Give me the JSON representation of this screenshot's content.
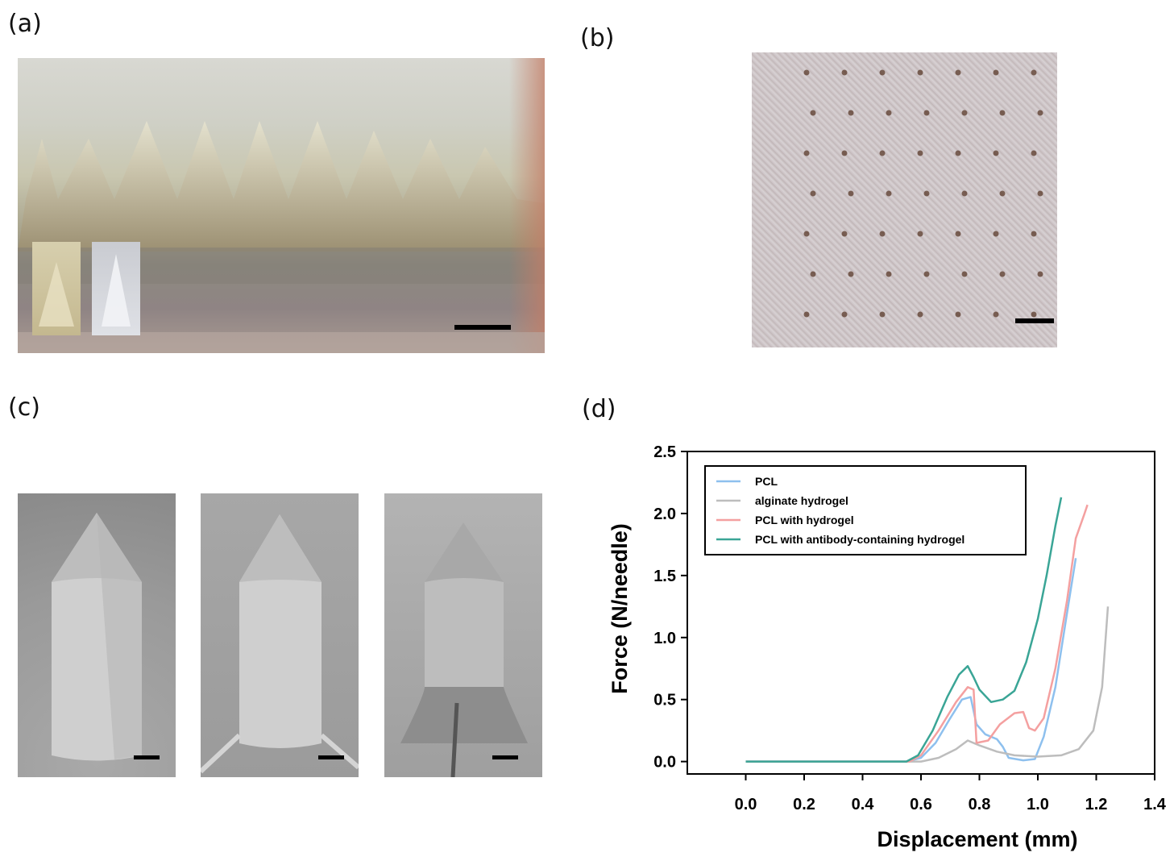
{
  "panels": {
    "a": {
      "label": "(a)"
    },
    "b": {
      "label": "(b)"
    },
    "c": {
      "label": "(c)"
    },
    "d": {
      "label": "(d)"
    }
  },
  "colors": {
    "pcl": "#8ec0ee",
    "alginate": "#bdbdbd",
    "pcl_hydrogel": "#f4a0a0",
    "pcl_antibody": "#3aa596"
  },
  "chart_data": {
    "type": "line",
    "title": "",
    "xlabel": "Displacement (mm)",
    "ylabel": "Force (N/needle)",
    "xlim": [
      -0.2,
      1.4
    ],
    "ylim": [
      -0.1,
      2.5
    ],
    "xticks": [
      "0.0",
      "0.2",
      "0.4",
      "0.6",
      "0.8",
      "1.0",
      "1.2",
      "1.4"
    ],
    "yticks": [
      "0.0",
      "0.5",
      "1.0",
      "1.5",
      "2.0",
      "2.5"
    ],
    "legend_position": "top-left",
    "grid": false,
    "series": [
      {
        "name": "PCL",
        "color": "#8ec0ee",
        "points": [
          [
            0.0,
            0.0
          ],
          [
            0.55,
            0.0
          ],
          [
            0.6,
            0.03
          ],
          [
            0.65,
            0.15
          ],
          [
            0.7,
            0.35
          ],
          [
            0.74,
            0.5
          ],
          [
            0.77,
            0.52
          ],
          [
            0.79,
            0.3
          ],
          [
            0.82,
            0.22
          ],
          [
            0.86,
            0.18
          ],
          [
            0.88,
            0.12
          ],
          [
            0.9,
            0.03
          ],
          [
            0.95,
            0.01
          ],
          [
            0.99,
            0.02
          ],
          [
            1.02,
            0.2
          ],
          [
            1.06,
            0.6
          ],
          [
            1.1,
            1.2
          ],
          [
            1.13,
            1.64
          ]
        ]
      },
      {
        "name": "alginate hydrogel",
        "color": "#bdbdbd",
        "points": [
          [
            0.0,
            0.0
          ],
          [
            0.6,
            0.0
          ],
          [
            0.66,
            0.03
          ],
          [
            0.72,
            0.1
          ],
          [
            0.76,
            0.17
          ],
          [
            0.8,
            0.13
          ],
          [
            0.86,
            0.08
          ],
          [
            0.92,
            0.05
          ],
          [
            1.0,
            0.04
          ],
          [
            1.08,
            0.05
          ],
          [
            1.14,
            0.1
          ],
          [
            1.19,
            0.25
          ],
          [
            1.22,
            0.6
          ],
          [
            1.24,
            1.25
          ]
        ]
      },
      {
        "name": "PCL with hydrogel",
        "color": "#f4a0a0",
        "points": [
          [
            0.0,
            0.0
          ],
          [
            0.56,
            0.0
          ],
          [
            0.6,
            0.05
          ],
          [
            0.66,
            0.25
          ],
          [
            0.72,
            0.48
          ],
          [
            0.76,
            0.6
          ],
          [
            0.78,
            0.58
          ],
          [
            0.79,
            0.15
          ],
          [
            0.83,
            0.17
          ],
          [
            0.87,
            0.3
          ],
          [
            0.92,
            0.39
          ],
          [
            0.95,
            0.4
          ],
          [
            0.97,
            0.27
          ],
          [
            0.99,
            0.25
          ],
          [
            1.02,
            0.35
          ],
          [
            1.06,
            0.75
          ],
          [
            1.1,
            1.3
          ],
          [
            1.13,
            1.8
          ],
          [
            1.16,
            2.0
          ],
          [
            1.17,
            2.07
          ]
        ]
      },
      {
        "name": "PCL with antibody-containing hydrogel",
        "color": "#3aa596",
        "points": [
          [
            0.0,
            0.0
          ],
          [
            0.55,
            0.0
          ],
          [
            0.59,
            0.05
          ],
          [
            0.64,
            0.25
          ],
          [
            0.69,
            0.52
          ],
          [
            0.73,
            0.7
          ],
          [
            0.76,
            0.77
          ],
          [
            0.78,
            0.68
          ],
          [
            0.8,
            0.58
          ],
          [
            0.84,
            0.48
          ],
          [
            0.88,
            0.5
          ],
          [
            0.92,
            0.57
          ],
          [
            0.96,
            0.8
          ],
          [
            1.0,
            1.15
          ],
          [
            1.03,
            1.5
          ],
          [
            1.06,
            1.9
          ],
          [
            1.08,
            2.13
          ]
        ]
      }
    ]
  }
}
